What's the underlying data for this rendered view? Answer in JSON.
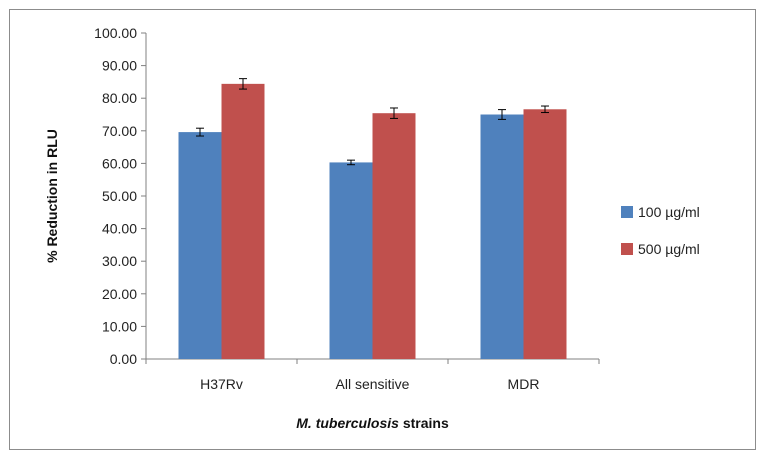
{
  "chart_data": {
    "type": "bar",
    "title": "",
    "xlabel": "M. tuberculosis strains",
    "xlabel_italic_part": "M. tuberculosis",
    "xlabel_rest": " strains",
    "ylabel": "% Reduction in RLU",
    "ylim": [
      0,
      100
    ],
    "yticks": [
      "0.00",
      "10.00",
      "20.00",
      "30.00",
      "40.00",
      "50.00",
      "60.00",
      "70.00",
      "80.00",
      "90.00",
      "100.00"
    ],
    "categories": [
      "H37Rv",
      "All sensitive",
      "MDR"
    ],
    "series": [
      {
        "name": "100 µg/ml",
        "color": "#4f81bd",
        "values": [
          69.6,
          60.3,
          75.0
        ],
        "errors": [
          1.2,
          0.7,
          1.5
        ]
      },
      {
        "name": "500 µg/ml",
        "color": "#c0504d",
        "values": [
          84.4,
          75.4,
          76.6
        ],
        "errors": [
          1.6,
          1.6,
          1.0
        ]
      }
    ],
    "grid": false,
    "legend_position": "right"
  }
}
